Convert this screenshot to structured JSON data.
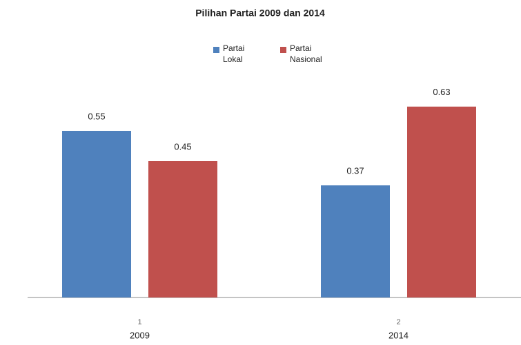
{
  "chart_data": {
    "type": "bar",
    "title": "Pilihan Partai 2009 dan 2014",
    "categories": [
      "2009",
      "2014"
    ],
    "category_numbers": [
      "1",
      "2"
    ],
    "series": [
      {
        "name": "Partai Lokal",
        "color": "#4f81bd",
        "values": [
          0.55,
          0.37
        ]
      },
      {
        "name": "Partai Nasional",
        "color": "#c0504d",
        "values": [
          0.45,
          0.63
        ]
      }
    ],
    "ylim": [
      0,
      0.7
    ],
    "legend": "top"
  }
}
